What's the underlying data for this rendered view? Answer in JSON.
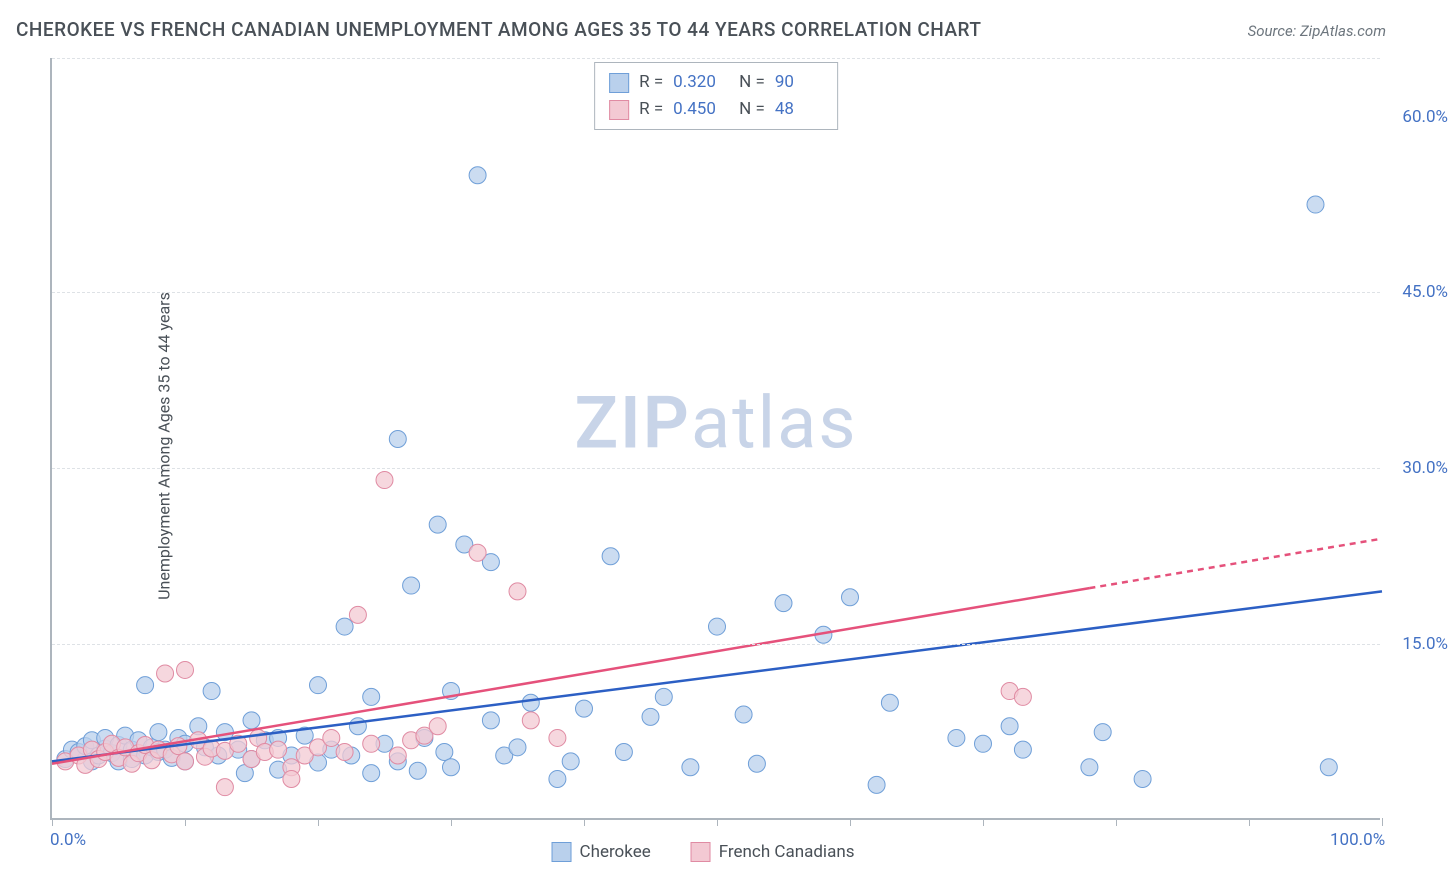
{
  "title": "CHEROKEE VS FRENCH CANADIAN UNEMPLOYMENT AMONG AGES 35 TO 44 YEARS CORRELATION CHART",
  "source": "Source: ZipAtlas.com",
  "watermark_zip": "ZIP",
  "watermark_atlas": "atlas",
  "y_axis_title": "Unemployment Among Ages 35 to 44 years",
  "chart": {
    "type": "scatter",
    "xlim": [
      0,
      100
    ],
    "ylim": [
      0,
      65
    ],
    "x_axis_labels": [
      {
        "pos": 0,
        "text": "0.0%"
      },
      {
        "pos": 100,
        "text": "100.0%"
      }
    ],
    "y_axis_labels": [
      {
        "pos": 15,
        "text": "15.0%"
      },
      {
        "pos": 30,
        "text": "30.0%"
      },
      {
        "pos": 45,
        "text": "45.0%"
      },
      {
        "pos": 60,
        "text": "60.0%"
      }
    ],
    "x_ticks": [
      0,
      10,
      20,
      30,
      40,
      50,
      60,
      70,
      80,
      90,
      100
    ],
    "grid_y": [
      15,
      30,
      45,
      65
    ],
    "background_color": "#ffffff",
    "grid_color": "#dee2e6",
    "axis_color": "#adb5bd",
    "marker_radius": 8.5,
    "marker_stroke_width": 1,
    "trend_line_width": 2.5
  },
  "series": [
    {
      "name": "Cherokee",
      "fill": "#b9d0ec",
      "stroke": "#6f9fd8",
      "line_color": "#2c5fc4",
      "r_value": "0.320",
      "n_value": "90",
      "trend": {
        "x1": 0,
        "y1": 5,
        "x2": 100,
        "y2": 19.5,
        "dash_from": 100
      },
      "points": [
        [
          1,
          5.2
        ],
        [
          1.5,
          6.0
        ],
        [
          2,
          5.8
        ],
        [
          2.5,
          6.3
        ],
        [
          3,
          5.0
        ],
        [
          3,
          6.8
        ],
        [
          3.5,
          5.5
        ],
        [
          4,
          6.1
        ],
        [
          4,
          7.0
        ],
        [
          4.5,
          5.7
        ],
        [
          5,
          6.4
        ],
        [
          5,
          5.0
        ],
        [
          5.5,
          7.2
        ],
        [
          6,
          6.0
        ],
        [
          6,
          5.2
        ],
        [
          6.5,
          6.8
        ],
        [
          7,
          5.5
        ],
        [
          7,
          11.5
        ],
        [
          7.5,
          6.2
        ],
        [
          8,
          5.8
        ],
        [
          8,
          7.5
        ],
        [
          8.5,
          6.0
        ],
        [
          9,
          5.3
        ],
        [
          9.5,
          7.0
        ],
        [
          10,
          6.5
        ],
        [
          10,
          5.0
        ],
        [
          11,
          8.0
        ],
        [
          11.5,
          6.2
        ],
        [
          12,
          11.0
        ],
        [
          12.5,
          5.5
        ],
        [
          13,
          7.5
        ],
        [
          14,
          6.0
        ],
        [
          14.5,
          4.0
        ],
        [
          15,
          8.5
        ],
        [
          15,
          5.2
        ],
        [
          16,
          6.8
        ],
        [
          17,
          7.0
        ],
        [
          17,
          4.3
        ],
        [
          18,
          5.5
        ],
        [
          19,
          7.2
        ],
        [
          20,
          11.5
        ],
        [
          20,
          4.9
        ],
        [
          21,
          6.0
        ],
        [
          22,
          16.5
        ],
        [
          22.5,
          5.5
        ],
        [
          23,
          8.0
        ],
        [
          24,
          4.0
        ],
        [
          24,
          10.5
        ],
        [
          25,
          6.5
        ],
        [
          26,
          5.0
        ],
        [
          26,
          32.5
        ],
        [
          27,
          20.0
        ],
        [
          27.5,
          4.2
        ],
        [
          28,
          7.0
        ],
        [
          29,
          25.2
        ],
        [
          29.5,
          5.8
        ],
        [
          30,
          11.0
        ],
        [
          30,
          4.5
        ],
        [
          31,
          23.5
        ],
        [
          32,
          55.0
        ],
        [
          33,
          8.5
        ],
        [
          33,
          22.0
        ],
        [
          34,
          5.5
        ],
        [
          35,
          6.2
        ],
        [
          36,
          10.0
        ],
        [
          38,
          3.5
        ],
        [
          39,
          5.0
        ],
        [
          40,
          9.5
        ],
        [
          42,
          22.5
        ],
        [
          43,
          5.8
        ],
        [
          45,
          8.8
        ],
        [
          46,
          10.5
        ],
        [
          48,
          4.5
        ],
        [
          50,
          16.5
        ],
        [
          52,
          9.0
        ],
        [
          53,
          4.8
        ],
        [
          55,
          18.5
        ],
        [
          58,
          15.8
        ],
        [
          60,
          19.0
        ],
        [
          62,
          3.0
        ],
        [
          63,
          10.0
        ],
        [
          68,
          7.0
        ],
        [
          70,
          6.5
        ],
        [
          72,
          8.0
        ],
        [
          73,
          6.0
        ],
        [
          78,
          4.5
        ],
        [
          79,
          7.5
        ],
        [
          82,
          3.5
        ],
        [
          95,
          52.5
        ],
        [
          96,
          4.5
        ]
      ]
    },
    {
      "name": "French Canadians",
      "fill": "#f3c9d3",
      "stroke": "#e08ba3",
      "line_color": "#e5517b",
      "r_value": "0.450",
      "n_value": "48",
      "trend": {
        "x1": 0,
        "y1": 4.8,
        "x2": 100,
        "y2": 24,
        "dash_from": 78
      },
      "points": [
        [
          1,
          5.0
        ],
        [
          2,
          5.5
        ],
        [
          2.5,
          4.7
        ],
        [
          3,
          6.0
        ],
        [
          3.5,
          5.2
        ],
        [
          4,
          5.8
        ],
        [
          4.5,
          6.5
        ],
        [
          5,
          5.3
        ],
        [
          5.5,
          6.2
        ],
        [
          6,
          4.8
        ],
        [
          6.5,
          5.7
        ],
        [
          7,
          6.4
        ],
        [
          7.5,
          5.1
        ],
        [
          8,
          6.0
        ],
        [
          8.5,
          12.5
        ],
        [
          9,
          5.6
        ],
        [
          9.5,
          6.3
        ],
        [
          10,
          5.0
        ],
        [
          10,
          12.8
        ],
        [
          11,
          6.8
        ],
        [
          11.5,
          5.4
        ],
        [
          12,
          6.1
        ],
        [
          13,
          5.9
        ],
        [
          13,
          2.8
        ],
        [
          14,
          6.5
        ],
        [
          15,
          5.2
        ],
        [
          15.5,
          7.0
        ],
        [
          16,
          5.8
        ],
        [
          17,
          6.0
        ],
        [
          18,
          4.5
        ],
        [
          18,
          3.5
        ],
        [
          19,
          5.5
        ],
        [
          20,
          6.2
        ],
        [
          21,
          7.0
        ],
        [
          22,
          5.8
        ],
        [
          23,
          17.5
        ],
        [
          24,
          6.5
        ],
        [
          25,
          29.0
        ],
        [
          26,
          5.5
        ],
        [
          27,
          6.8
        ],
        [
          28,
          7.2
        ],
        [
          29,
          8.0
        ],
        [
          32,
          22.8
        ],
        [
          35,
          19.5
        ],
        [
          36,
          8.5
        ],
        [
          38,
          7.0
        ],
        [
          72,
          11.0
        ],
        [
          73,
          10.5
        ]
      ]
    }
  ],
  "stat_legend_labels": {
    "r": "R =",
    "n": "N ="
  },
  "bottom_legend": [
    {
      "label": "Cherokee",
      "fill": "#b9d0ec",
      "stroke": "#6f9fd8"
    },
    {
      "label": "French Canadians",
      "fill": "#f3c9d3",
      "stroke": "#e08ba3"
    }
  ]
}
